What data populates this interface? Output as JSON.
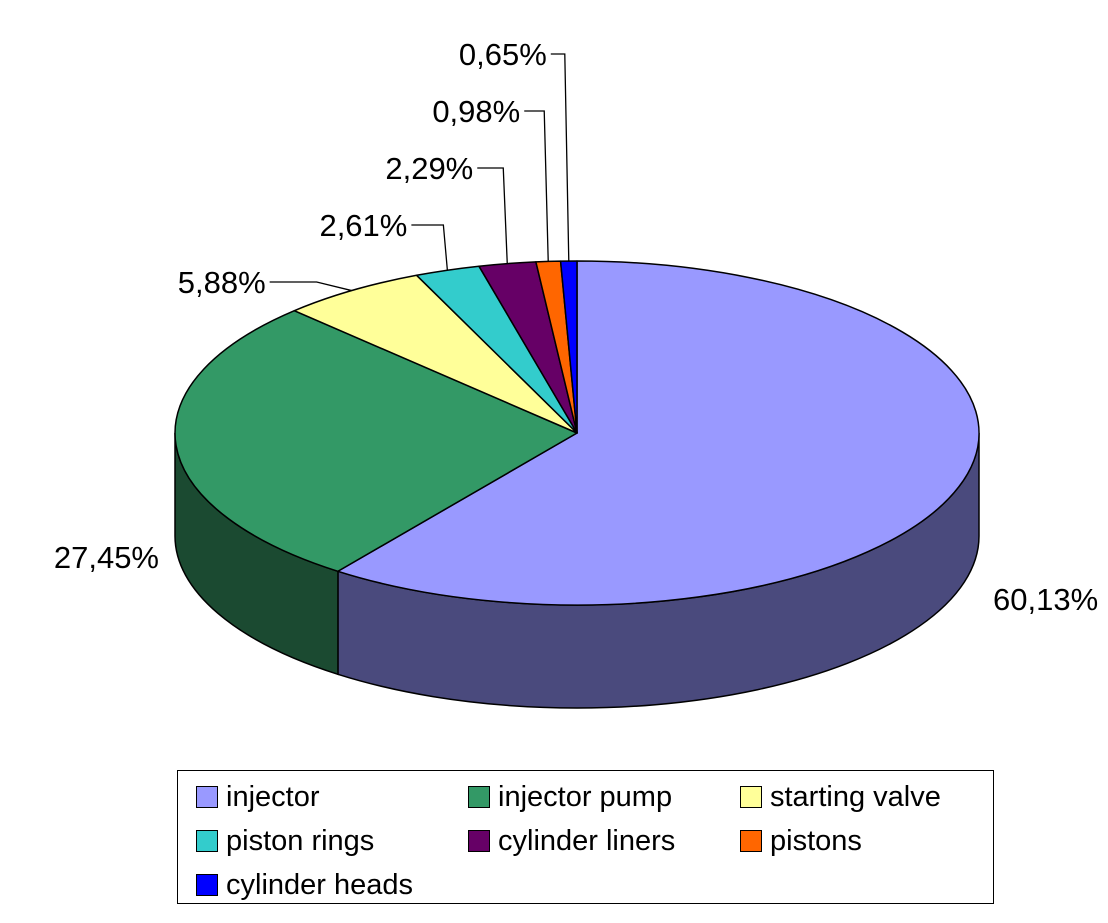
{
  "chart_data": {
    "type": "pie",
    "title": "",
    "categories": [
      "injector",
      "injector pump",
      "starting valve",
      "piston rings",
      "cylinder liners",
      "pistons",
      "cylinder heads"
    ],
    "values": [
      60.13,
      27.45,
      5.88,
      2.61,
      2.29,
      0.98,
      0.65
    ],
    "value_labels": [
      "60,13%",
      "27,45%",
      "5,88%",
      "2,61%",
      "2,29%",
      "0,98%",
      "0,65%"
    ],
    "colors": [
      "#9999ff",
      "#339966",
      "#ffff99",
      "#33cccc",
      "#660066",
      "#ff6600",
      "#0000ff"
    ],
    "side_colors": [
      "#4a4a7d",
      "#1b4a31",
      "#7d7d4a",
      "#1a6666",
      "#330033",
      "#7d3300",
      "#00007d"
    ],
    "legend_placement": "bottom",
    "style": "3d-pie"
  }
}
